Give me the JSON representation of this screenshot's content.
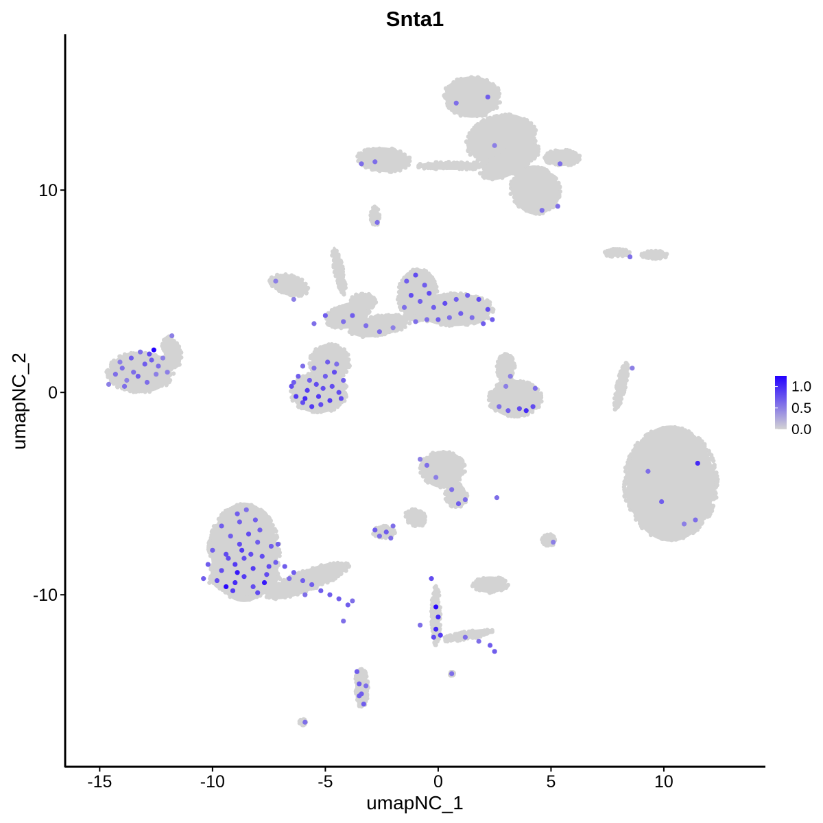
{
  "chart_data": {
    "type": "scatter",
    "title": "Snta1",
    "xlabel": "umapNC_1",
    "ylabel": "umapNC_2",
    "xlim": [
      -16.5,
      14.5
    ],
    "ylim": [
      -18.5,
      17.7
    ],
    "x_ticks": [
      {
        "value": -15,
        "label": "-15"
      },
      {
        "value": -10,
        "label": "-10"
      },
      {
        "value": -5,
        "label": "-5"
      },
      {
        "value": 0,
        "label": "0"
      },
      {
        "value": 5,
        "label": "5"
      },
      {
        "value": 10,
        "label": "10"
      }
    ],
    "y_ticks": [
      {
        "value": -10,
        "label": "-10"
      },
      {
        "value": 0,
        "label": "0"
      },
      {
        "value": 10,
        "label": "10"
      }
    ],
    "grid": false,
    "legend": {
      "position": "right",
      "low_color": "#d3d3d3",
      "high_color": "#2200ff",
      "ticks": [
        {
          "value": 0.0,
          "label": "0.0"
        },
        {
          "value": 0.5,
          "label": "0.5"
        },
        {
          "value": 1.0,
          "label": "1.0"
        }
      ],
      "max_value": 1.25
    },
    "background_color": "#d3d3d3",
    "expressing_points": [
      [
        -12.6,
        2.1,
        1.25
      ],
      [
        -12.8,
        1.9,
        0.8
      ],
      [
        -13.2,
        2.0,
        0.6
      ],
      [
        -13.6,
        1.7,
        0.7
      ],
      [
        -14.0,
        1.2,
        0.6
      ],
      [
        -13.0,
        1.4,
        0.7
      ],
      [
        -12.4,
        1.3,
        0.6
      ],
      [
        -12.2,
        1.7,
        0.5
      ],
      [
        -14.3,
        0.9,
        0.6
      ],
      [
        -13.8,
        0.6,
        0.5
      ],
      [
        -13.3,
        0.8,
        0.7
      ],
      [
        -12.9,
        0.5,
        0.6
      ],
      [
        -12.5,
        0.9,
        0.5
      ],
      [
        -14.6,
        0.4,
        0.5
      ],
      [
        -11.8,
        2.8,
        0.5
      ],
      [
        -12.0,
        1.0,
        0.5
      ],
      [
        -13.5,
        1.0,
        0.6
      ],
      [
        -14.1,
        1.5,
        0.5
      ],
      [
        -12.7,
        1.6,
        0.7
      ],
      [
        -13.9,
        0.3,
        0.6
      ],
      [
        -6.5,
        0.3,
        0.8
      ],
      [
        -6.3,
        -0.2,
        0.9
      ],
      [
        -6.0,
        -0.5,
        0.8
      ],
      [
        -5.6,
        -0.7,
        0.9
      ],
      [
        -5.2,
        -0.6,
        0.8
      ],
      [
        -4.8,
        -0.4,
        0.9
      ],
      [
        -4.4,
        0.0,
        0.8
      ],
      [
        -4.2,
        0.6,
        0.7
      ],
      [
        -4.6,
        1.0,
        0.8
      ],
      [
        -5.0,
        0.8,
        0.7
      ],
      [
        -5.4,
        0.4,
        0.8
      ],
      [
        -5.8,
        0.1,
        0.9
      ],
      [
        -6.2,
        0.8,
        0.7
      ],
      [
        -5.5,
        1.2,
        0.6
      ],
      [
        -4.9,
        1.5,
        0.7
      ],
      [
        -4.5,
        1.4,
        0.6
      ],
      [
        -6.0,
        1.3,
        0.6
      ],
      [
        -5.3,
        -0.2,
        0.9
      ],
      [
        -4.7,
        0.3,
        0.8
      ],
      [
        -5.9,
        -0.3,
        1.0
      ],
      [
        -5.1,
        0.2,
        0.8
      ],
      [
        -4.3,
        -0.3,
        0.8
      ],
      [
        -6.4,
        0.5,
        0.7
      ],
      [
        -5.7,
        0.6,
        0.7
      ],
      [
        -1.4,
        5.5,
        0.7
      ],
      [
        -1.0,
        5.8,
        0.8
      ],
      [
        -0.6,
        5.3,
        0.7
      ],
      [
        -1.2,
        4.8,
        0.8
      ],
      [
        -0.8,
        4.5,
        0.7
      ],
      [
        -0.4,
        4.9,
        0.8
      ],
      [
        -1.5,
        4.2,
        0.6
      ],
      [
        -0.2,
        4.2,
        0.7
      ],
      [
        0.3,
        4.4,
        0.8
      ],
      [
        0.8,
        4.6,
        0.7
      ],
      [
        1.3,
        4.8,
        0.7
      ],
      [
        1.8,
        4.6,
        0.8
      ],
      [
        2.2,
        4.1,
        0.8
      ],
      [
        2.4,
        3.6,
        0.7
      ],
      [
        2.0,
        3.4,
        0.7
      ],
      [
        1.5,
        3.7,
        0.6
      ],
      [
        1.0,
        3.9,
        0.7
      ],
      [
        0.5,
        3.7,
        0.6
      ],
      [
        0.0,
        3.6,
        0.7
      ],
      [
        -0.5,
        3.6,
        0.6
      ],
      [
        -1.0,
        3.5,
        0.6
      ],
      [
        -2.0,
        3.2,
        0.5
      ],
      [
        -2.6,
        3.0,
        0.6
      ],
      [
        -3.2,
        3.3,
        0.6
      ],
      [
        -3.8,
        3.8,
        0.7
      ],
      [
        -4.2,
        3.5,
        0.6
      ],
      [
        -5.0,
        3.8,
        0.7
      ],
      [
        -5.5,
        3.4,
        0.6
      ],
      [
        -7.2,
        5.5,
        0.5
      ],
      [
        -6.4,
        4.6,
        0.5
      ],
      [
        2.7,
        -0.7,
        0.6
      ],
      [
        3.1,
        -0.9,
        0.7
      ],
      [
        3.6,
        -0.8,
        0.8
      ],
      [
        3.9,
        -0.9,
        1.0
      ],
      [
        4.2,
        -0.7,
        0.8
      ],
      [
        4.3,
        0.2,
        0.6
      ],
      [
        3.2,
        0.8,
        0.5
      ],
      [
        3.0,
        0.3,
        0.5
      ],
      [
        -0.5,
        -3.6,
        0.6
      ],
      [
        -0.1,
        -4.2,
        0.5
      ],
      [
        0.6,
        -4.8,
        0.6
      ],
      [
        0.9,
        -5.5,
        0.7
      ],
      [
        1.2,
        -5.3,
        0.6
      ],
      [
        -0.8,
        -3.3,
        0.5
      ],
      [
        -2.8,
        -6.8,
        0.7
      ],
      [
        -2.6,
        -7.1,
        0.6
      ],
      [
        -2.3,
        -6.9,
        0.7
      ],
      [
        -2.1,
        -7.2,
        0.6
      ],
      [
        -2.0,
        -6.6,
        0.6
      ],
      [
        -9.4,
        -8.0,
        0.8
      ],
      [
        -9.0,
        -8.5,
        0.9
      ],
      [
        -8.6,
        -8.2,
        0.8
      ],
      [
        -8.2,
        -8.7,
        0.9
      ],
      [
        -7.8,
        -8.1,
        0.8
      ],
      [
        -7.4,
        -7.6,
        0.7
      ],
      [
        -8.8,
        -7.5,
        0.8
      ],
      [
        -9.2,
        -7.1,
        0.7
      ],
      [
        -8.4,
        -7.0,
        0.8
      ],
      [
        -8.0,
        -7.4,
        0.7
      ],
      [
        -9.6,
        -8.8,
        0.8
      ],
      [
        -9.0,
        -9.4,
        1.0
      ],
      [
        -8.6,
        -9.1,
        0.9
      ],
      [
        -8.2,
        -9.6,
        0.8
      ],
      [
        -7.6,
        -9.0,
        0.8
      ],
      [
        -7.2,
        -8.4,
        0.7
      ],
      [
        -9.8,
        -9.3,
        0.8
      ],
      [
        -10.2,
        -8.5,
        0.7
      ],
      [
        -10.4,
        -9.2,
        0.7
      ],
      [
        -9.4,
        -9.6,
        1.2
      ],
      [
        -8.8,
        -6.4,
        0.7
      ],
      [
        -8.5,
        -5.8,
        0.6
      ],
      [
        -8.9,
        -6.0,
        0.7
      ],
      [
        -8.1,
        -6.3,
        0.7
      ],
      [
        -7.9,
        -6.8,
        0.7
      ],
      [
        -9.6,
        -6.6,
        0.7
      ],
      [
        -7.1,
        -7.5,
        0.7
      ],
      [
        -7.7,
        -9.4,
        1.1
      ],
      [
        -8.9,
        -8.9,
        1.1
      ],
      [
        -8.3,
        -8.0,
        0.8
      ],
      [
        -9.3,
        -8.2,
        0.8
      ],
      [
        -10.0,
        -7.8,
        0.7
      ],
      [
        -8.7,
        -7.8,
        0.9
      ],
      [
        -7.5,
        -8.6,
        0.8
      ],
      [
        -9.1,
        -9.8,
        0.9
      ],
      [
        -8.0,
        -9.9,
        0.8
      ],
      [
        -6.8,
        -8.6,
        0.7
      ],
      [
        -6.4,
        -8.9,
        0.7
      ],
      [
        -6.0,
        -9.3,
        0.7
      ],
      [
        -5.6,
        -9.5,
        0.7
      ],
      [
        -5.2,
        -9.8,
        0.7
      ],
      [
        -4.8,
        -10.0,
        0.7
      ],
      [
        -4.4,
        -10.2,
        0.7
      ],
      [
        -4.0,
        -10.5,
        0.7
      ],
      [
        -3.8,
        -10.3,
        0.6
      ],
      [
        -6.6,
        -9.2,
        0.6
      ],
      [
        -5.9,
        -10.0,
        0.6
      ],
      [
        -4.2,
        -11.3,
        0.6
      ],
      [
        -3.6,
        -13.8,
        0.7
      ],
      [
        -3.5,
        -14.4,
        0.7
      ],
      [
        -3.4,
        -14.9,
        0.7
      ],
      [
        -3.3,
        -15.4,
        0.7
      ],
      [
        -3.5,
        -15.0,
        0.7
      ],
      [
        -3.2,
        -14.5,
        0.6
      ],
      [
        -5.9,
        -16.3,
        0.6
      ],
      [
        -0.3,
        -9.2,
        0.8
      ],
      [
        -0.1,
        -10.6,
        1.2
      ],
      [
        0.0,
        -11.1,
        1.0
      ],
      [
        -0.1,
        -11.7,
        1.0
      ],
      [
        0.1,
        -12.0,
        0.9
      ],
      [
        -0.2,
        -12.1,
        0.8
      ],
      [
        1.2,
        -12.1,
        0.6
      ],
      [
        1.8,
        -12.3,
        0.6
      ],
      [
        2.3,
        -12.5,
        0.7
      ],
      [
        2.5,
        -12.8,
        0.7
      ],
      [
        -0.8,
        -11.5,
        0.6
      ],
      [
        0.6,
        -13.9,
        0.6
      ],
      [
        2.6,
        -5.2,
        0.6
      ],
      [
        5.1,
        -7.4,
        0.5
      ],
      [
        0.8,
        14.3,
        0.6
      ],
      [
        2.2,
        14.6,
        0.7
      ],
      [
        5.4,
        11.3,
        0.6
      ],
      [
        2.5,
        12.2,
        0.5
      ],
      [
        5.3,
        9.2,
        0.6
      ],
      [
        4.6,
        9.0,
        0.6
      ],
      [
        -3.4,
        11.3,
        0.6
      ],
      [
        -2.8,
        11.4,
        0.6
      ],
      [
        -2.7,
        8.4,
        0.6
      ],
      [
        8.5,
        6.7,
        0.6
      ],
      [
        8.6,
        1.2,
        0.5
      ],
      [
        11.5,
        -3.5,
        1.0
      ],
      [
        9.9,
        -5.4,
        0.7
      ],
      [
        11.4,
        -6.3,
        0.6
      ],
      [
        9.3,
        -3.9,
        0.6
      ],
      [
        10.9,
        -6.5,
        0.5
      ]
    ]
  }
}
